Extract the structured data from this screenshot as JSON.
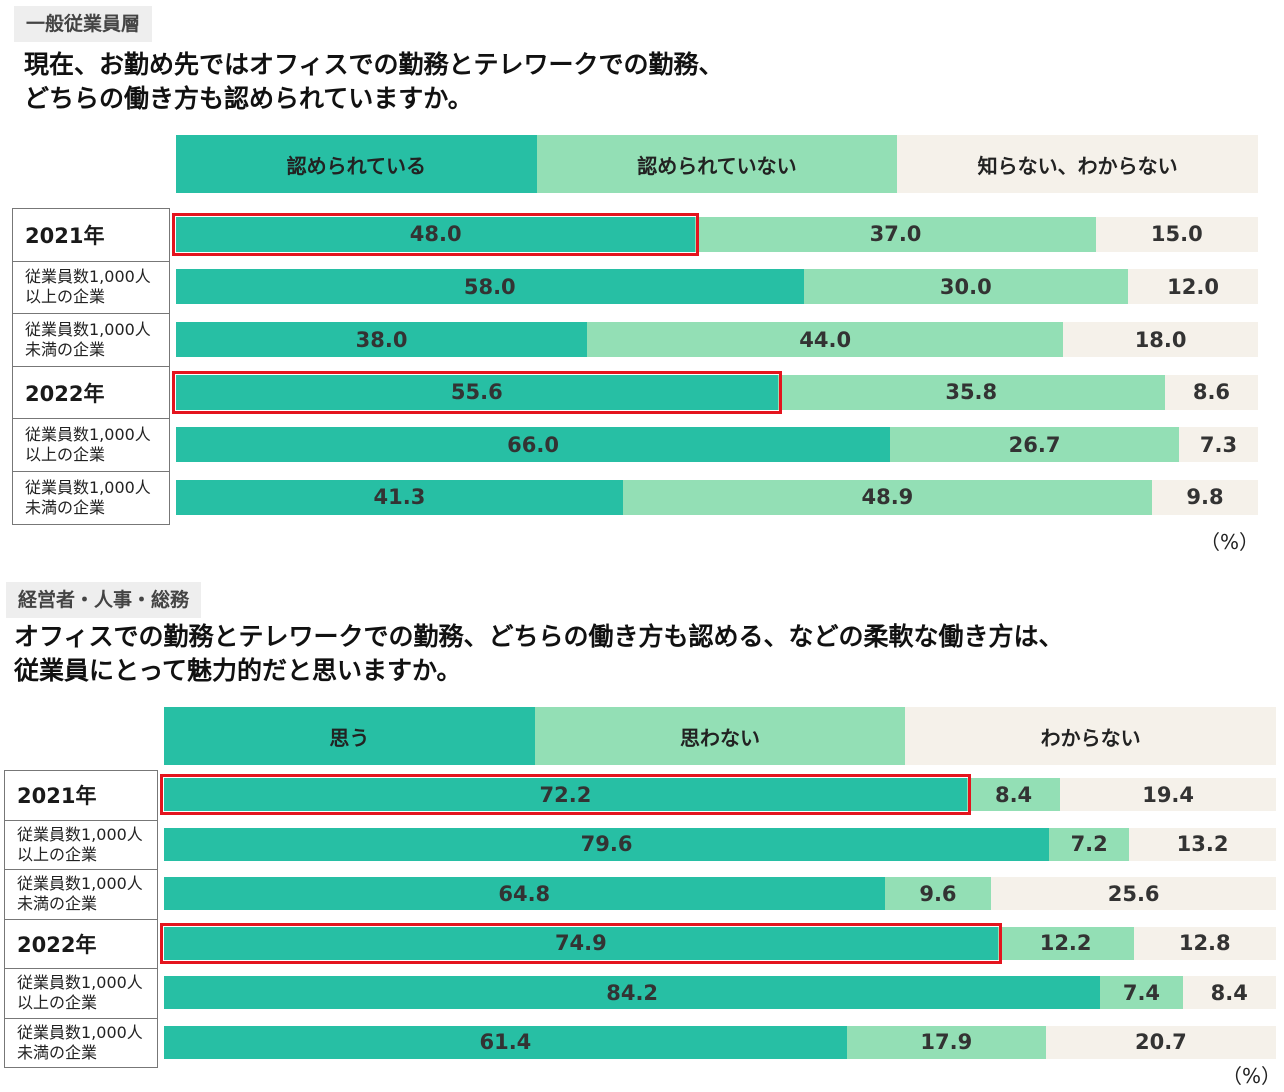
{
  "colors": {
    "yes": "#27bfa4",
    "no": "#93dfb5",
    "unknown": "#f5f1ea",
    "highlight": "#e4141e"
  },
  "chart_data": [
    {
      "type": "bar",
      "orientation": "horizontal-stacked-100",
      "tag": "一般従業員層",
      "title": [
        "現在、お勤め先ではオフィスでの勤務とテレワークでの勤務、",
        "どちらの働き方も認められていますか。"
      ],
      "legend": [
        "認められている",
        "認められていない",
        "知らない、わからない"
      ],
      "unit": "（%）",
      "categories": [
        {
          "label": "2021年",
          "kind": "year",
          "lines": [
            "2021年"
          ]
        },
        {
          "label": "従業員数1,000人以上の企業",
          "kind": "sub",
          "lines": [
            "従業員数1,000人",
            "以上の企業"
          ]
        },
        {
          "label": "従業員数1,000人未満の企業",
          "kind": "sub",
          "lines": [
            "従業員数1,000人",
            "未満の企業"
          ]
        },
        {
          "label": "2022年",
          "kind": "year",
          "lines": [
            "2022年"
          ]
        },
        {
          "label": "従業員数1,000人以上の企業",
          "kind": "sub",
          "lines": [
            "従業員数1,000人",
            "以上の企業"
          ]
        },
        {
          "label": "従業員数1,000人未満の企業",
          "kind": "sub",
          "lines": [
            "従業員数1,000人",
            "未満の企業"
          ]
        }
      ],
      "series": [
        {
          "name": "認められている",
          "values": [
            48.0,
            58.0,
            38.0,
            55.6,
            66.0,
            41.3
          ]
        },
        {
          "name": "認められていない",
          "values": [
            37.0,
            30.0,
            44.0,
            35.8,
            26.7,
            48.9
          ]
        },
        {
          "name": "知らない、わからない",
          "values": [
            15.0,
            12.0,
            18.0,
            8.6,
            7.3,
            9.8
          ]
        }
      ],
      "highlighted_rows": [
        0,
        3
      ]
    },
    {
      "type": "bar",
      "orientation": "horizontal-stacked-100",
      "tag": "経営者・人事・総務",
      "title": [
        "オフィスでの勤務とテレワークでの勤務、どちらの働き方も認める、などの柔軟な働き方は、",
        "従業員にとって魅力的だと思いますか。"
      ],
      "legend": [
        "思う",
        "思わない",
        "わからない"
      ],
      "unit": "（%）",
      "categories": [
        {
          "label": "2021年",
          "kind": "year",
          "lines": [
            "2021年"
          ]
        },
        {
          "label": "従業員数1,000人以上の企業",
          "kind": "sub",
          "lines": [
            "従業員数1,000人",
            "以上の企業"
          ]
        },
        {
          "label": "従業員数1,000人未満の企業",
          "kind": "sub",
          "lines": [
            "従業員数1,000人",
            "未満の企業"
          ]
        },
        {
          "label": "2022年",
          "kind": "year",
          "lines": [
            "2022年"
          ]
        },
        {
          "label": "従業員数1,000人以上の企業",
          "kind": "sub",
          "lines": [
            "従業員数1,000人",
            "以上の企業"
          ]
        },
        {
          "label": "従業員数1,000人未満の企業",
          "kind": "sub",
          "lines": [
            "従業員数1,000人",
            "未満の企業"
          ]
        }
      ],
      "series": [
        {
          "name": "思う",
          "values": [
            72.2,
            79.6,
            64.8,
            74.9,
            84.2,
            61.4
          ]
        },
        {
          "name": "思わない",
          "values": [
            8.4,
            7.2,
            9.6,
            12.2,
            7.4,
            17.9
          ]
        },
        {
          "name": "わからない",
          "values": [
            19.4,
            13.2,
            25.6,
            12.8,
            8.4,
            20.7
          ]
        }
      ],
      "highlighted_rows": [
        0,
        3
      ]
    }
  ]
}
